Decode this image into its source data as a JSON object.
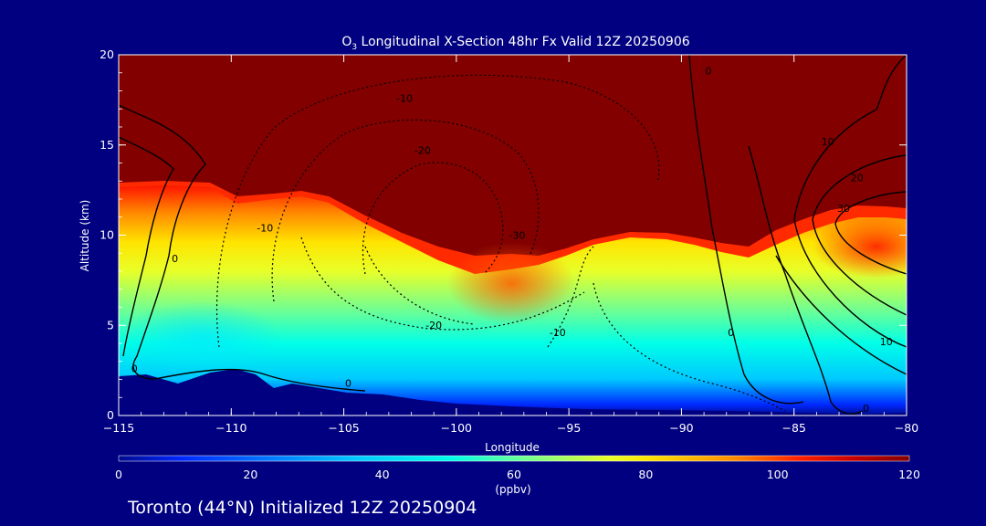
{
  "chart_data": {
    "type": "heatmap",
    "title_prefix": "O",
    "title_sub": "3",
    "title_rest": " Longitudinal X-Section 48hr  Fx Valid 12Z 20250906",
    "xlabel": "Longitude",
    "ylabel": "Altitude (km)",
    "xlim": [
      -115,
      -80
    ],
    "ylim": [
      0,
      20
    ],
    "x_ticks": [
      -115,
      -110,
      -105,
      -100,
      -95,
      -90,
      -85,
      -80
    ],
    "x_tick_labels": [
      "−115",
      "−110",
      "−105",
      "−100",
      "−95",
      "−90",
      "−85",
      "−80"
    ],
    "y_ticks": [
      0,
      5,
      10,
      15,
      20
    ],
    "y_tick_labels": [
      "0",
      "5",
      "10",
      "15",
      "20"
    ],
    "colorbar": {
      "min": 0,
      "max": 120,
      "unit": "(ppbv)",
      "ticks": [
        0,
        20,
        40,
        60,
        80,
        100,
        120
      ],
      "tick_labels": [
        "0",
        "20",
        "40",
        "60",
        "80",
        "100",
        "120"
      ],
      "colors": [
        "#000a8c",
        "#0028ff",
        "#00c8ff",
        "#00ffe8",
        "#78ff8c",
        "#e8ff28",
        "#ffe400",
        "#ff8c00",
        "#ff2000",
        "#c80000",
        "#820000"
      ]
    },
    "contour_labels": [
      {
        "text": "-10",
        "lon": -102.3,
        "alt": 17.4
      },
      {
        "text": "-20",
        "lon": -101.5,
        "alt": 14.5
      },
      {
        "text": "-10",
        "lon": -108.5,
        "alt": 10.2
      },
      {
        "text": "-20",
        "lon": -101.0,
        "alt": 4.8
      },
      {
        "text": "-10",
        "lon": -95.5,
        "alt": 4.4
      },
      {
        "text": "-30",
        "lon": -97.3,
        "alt": 9.8
      },
      {
        "text": "0",
        "lon": -112.5,
        "alt": 8.5
      },
      {
        "text": "0",
        "lon": -114.3,
        "alt": 2.4
      },
      {
        "text": "0",
        "lon": -104.8,
        "alt": 1.6
      },
      {
        "text": "0",
        "lon": -88.8,
        "alt": 18.9
      },
      {
        "text": "0",
        "lon": -87.8,
        "alt": 4.4
      },
      {
        "text": "10",
        "lon": -83.5,
        "alt": 15.0
      },
      {
        "text": "20",
        "lon": -82.2,
        "alt": 13.0
      },
      {
        "text": "30",
        "lon": -82.8,
        "alt": 11.3
      },
      {
        "text": "10",
        "lon": -80.9,
        "alt": 3.9
      },
      {
        "text": "0",
        "lon": -81.8,
        "alt": 0.2
      }
    ]
  },
  "footer": {
    "text": "Toronto (44°N) Initialized 12Z 20250904"
  }
}
